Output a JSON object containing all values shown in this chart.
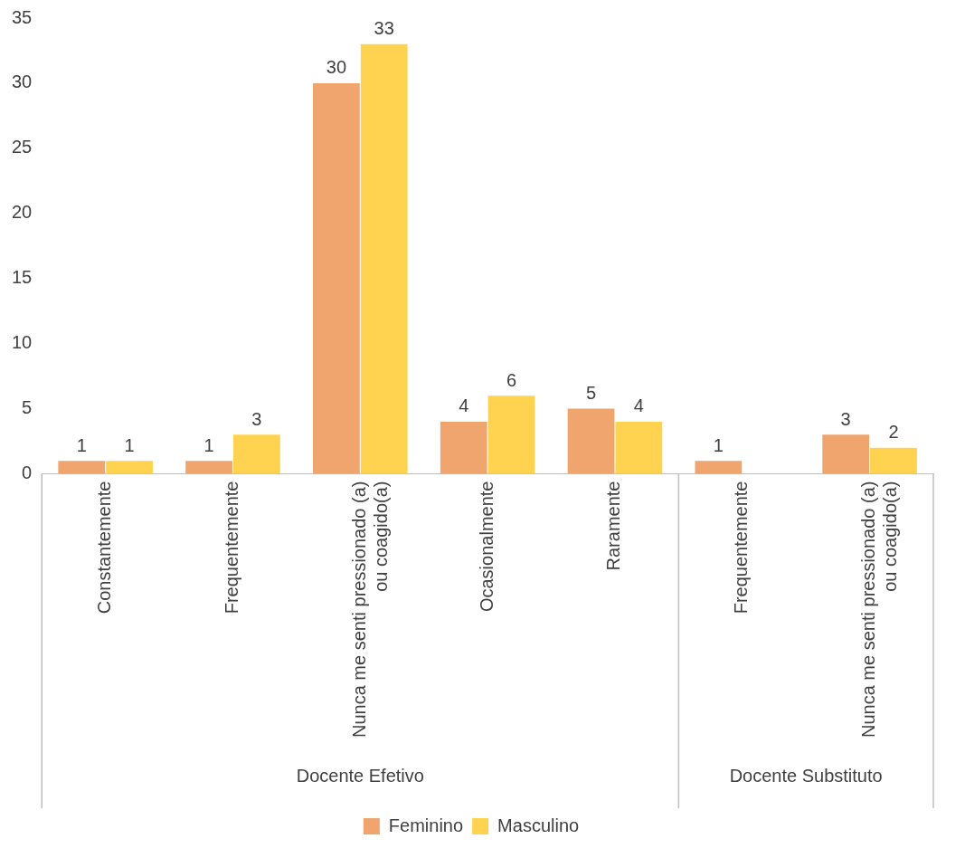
{
  "chart_data": {
    "type": "bar",
    "categories": [
      "Constantemente",
      "Frequentemente",
      "Nunca me senti pressionado (a) ou coagido(a)",
      "Ocasionalmente",
      "Raramente",
      "Frequentemente",
      "Nunca me senti pressionado (a) ou coagido(a)"
    ],
    "series": [
      {
        "name": "Feminino",
        "color": "#f0a46e",
        "values": [
          1,
          1,
          30,
          4,
          5,
          1,
          3
        ]
      },
      {
        "name": "Masculino",
        "color": "#ffd34f",
        "values": [
          1,
          3,
          33,
          6,
          4,
          null,
          2
        ]
      }
    ],
    "annotations": [
      "Docente Efetivo",
      "Docente Substituto"
    ],
    "ylim": [
      0,
      35
    ],
    "yticks": [
      0,
      5,
      10,
      15,
      20,
      25,
      30,
      35
    ],
    "data_labels": true,
    "grid": false,
    "legend": "bottom"
  }
}
